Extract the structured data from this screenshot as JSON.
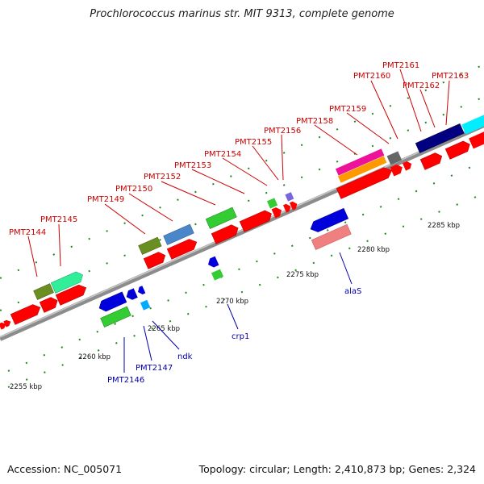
{
  "title": "Prochlorococcus marinus str. MIT 9313, complete genome",
  "footer": {
    "accession": "Accession: NC_005071",
    "summary": "Topology: circular; Length: 2,410,873 bp; Genes: 2,324"
  },
  "scale_labels": [
    "2255 kbp",
    "2260 kbp",
    "2265 kbp",
    "2270 kbp",
    "2275 kbp",
    "2280 kbp",
    "2285 kbp"
  ],
  "gene_labels": {
    "forward": [
      "PMT2144",
      "PMT2145",
      "PMT2149",
      "PMT2150",
      "PMT2152",
      "PMT2153",
      "PMT2154",
      "PMT2155",
      "PMT2156",
      "PMT2158",
      "PMT2159",
      "PMT2160",
      "PMT2161",
      "PMT2162",
      "PMT2163"
    ],
    "reverse": [
      "PMT2146",
      "PMT2147",
      "ndk",
      "crp1",
      "alaS"
    ]
  },
  "colors": {
    "backbone": "#8c8c8c",
    "forward_label": "#cc0000",
    "reverse_label": "#0000aa",
    "cds": "#ff0000"
  }
}
